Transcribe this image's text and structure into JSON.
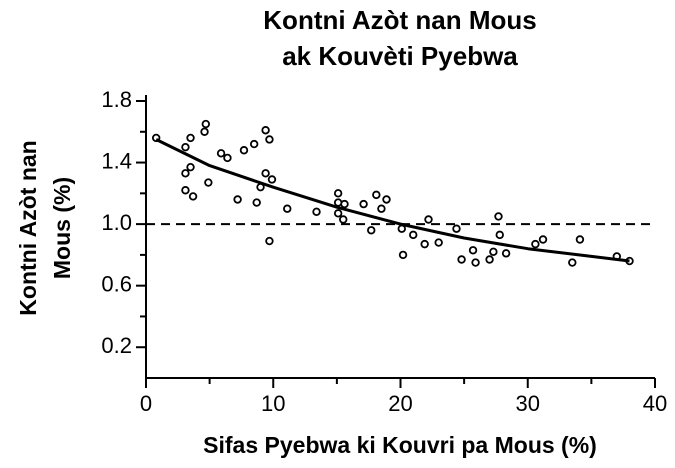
{
  "chart_data": {
    "type": "scatter",
    "title": [
      "Kontni Azòt nan Mous",
      "ak Kouvèti Pyebwa"
    ],
    "x_label": "Sifas Pyebwa ki Kouvri pa Mous (%)",
    "y_label": [
      "Kontni Azòt nan",
      "Mous (%)"
    ],
    "x": [
      0.8,
      3.5,
      4.7,
      4.6,
      3.1,
      3.5,
      3.1,
      3.1,
      3.7,
      4.9,
      5.9,
      6.4,
      7.7,
      8.5,
      9.4,
      9.7,
      7.2,
      8.7,
      9.0,
      9.4,
      9.9,
      9.7,
      11.1,
      13.4,
      15.1,
      15.1,
      15.6,
      15.5,
      15.1,
      17.1,
      18.1,
      18.5,
      18.9,
      17.7,
      20.1,
      21.0,
      20.2,
      22.2,
      21.9,
      23.0,
      24.4,
      24.8,
      25.7,
      25.9,
      27.0,
      27.3,
      27.7,
      27.8,
      28.3,
      30.6,
      31.2,
      33.5,
      34.1,
      37.0,
      38.0
    ],
    "values": [
      1.56,
      1.56,
      1.65,
      1.6,
      1.5,
      1.37,
      1.33,
      1.22,
      1.18,
      1.27,
      1.46,
      1.43,
      1.48,
      1.52,
      1.61,
      1.55,
      1.16,
      1.14,
      1.24,
      1.33,
      1.29,
      0.89,
      1.1,
      1.08,
      1.2,
      1.14,
      1.13,
      1.03,
      1.07,
      1.13,
      1.19,
      1.1,
      1.16,
      0.96,
      0.97,
      0.93,
      0.8,
      1.03,
      0.87,
      0.88,
      0.97,
      0.77,
      0.83,
      0.75,
      0.77,
      0.82,
      1.05,
      0.93,
      0.81,
      0.87,
      0.9,
      0.75,
      0.9,
      0.79,
      0.76
    ],
    "fit": {
      "x": [
        0.8,
        5,
        10,
        15,
        20,
        25,
        30,
        35,
        38
      ],
      "values": [
        1.55,
        1.38,
        1.24,
        1.11,
        1.0,
        0.91,
        0.84,
        0.79,
        0.76
      ]
    },
    "reference_line": 1.0,
    "xlim": [
      0,
      40
    ],
    "xticks": [
      0,
      10,
      20,
      30,
      40
    ],
    "xticks_minor": [
      5,
      15,
      25,
      35
    ],
    "ylim": [
      0,
      1.8
    ],
    "yticks": [
      0.2,
      0.6,
      {
        "value": 1,
        "label": "1.0"
      },
      1.4,
      1.8
    ],
    "yticks_minor": [
      0.4,
      0.8,
      1.2,
      1.6
    ],
    "color": "#000000"
  }
}
